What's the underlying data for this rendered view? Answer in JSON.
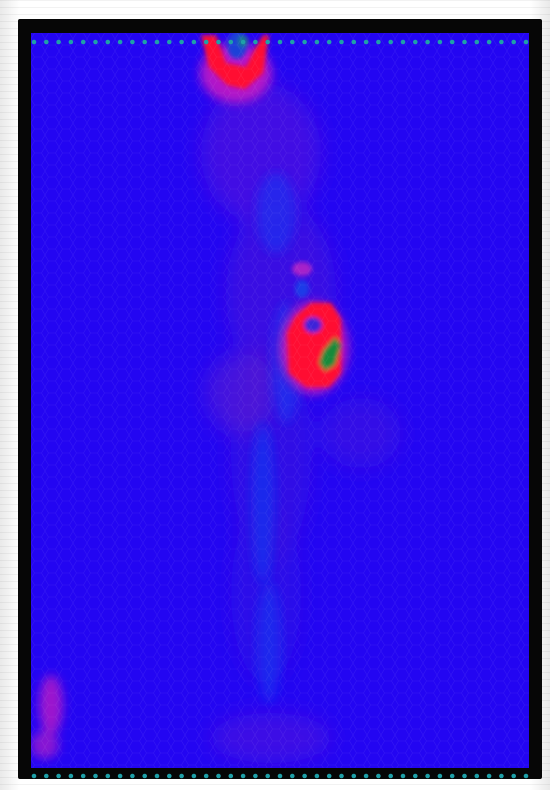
{
  "image": {
    "type": "hexbin-heatmap",
    "colors": {
      "background": "#2305f2",
      "frame": "#060606",
      "hot": "#ff1030",
      "warm": "#b01ac8",
      "cool": "#1d2cf0",
      "accent_green": "#168a3a",
      "marker": "#1fa0a8"
    },
    "hotspots": [
      {
        "label": "top-hotspot",
        "intensity": "high"
      },
      {
        "label": "center-hotspot",
        "intensity": "high"
      },
      {
        "label": "bottom-left-hotspot",
        "intensity": "low"
      }
    ],
    "edge_markers": {
      "count_per_edge": 41
    }
  }
}
